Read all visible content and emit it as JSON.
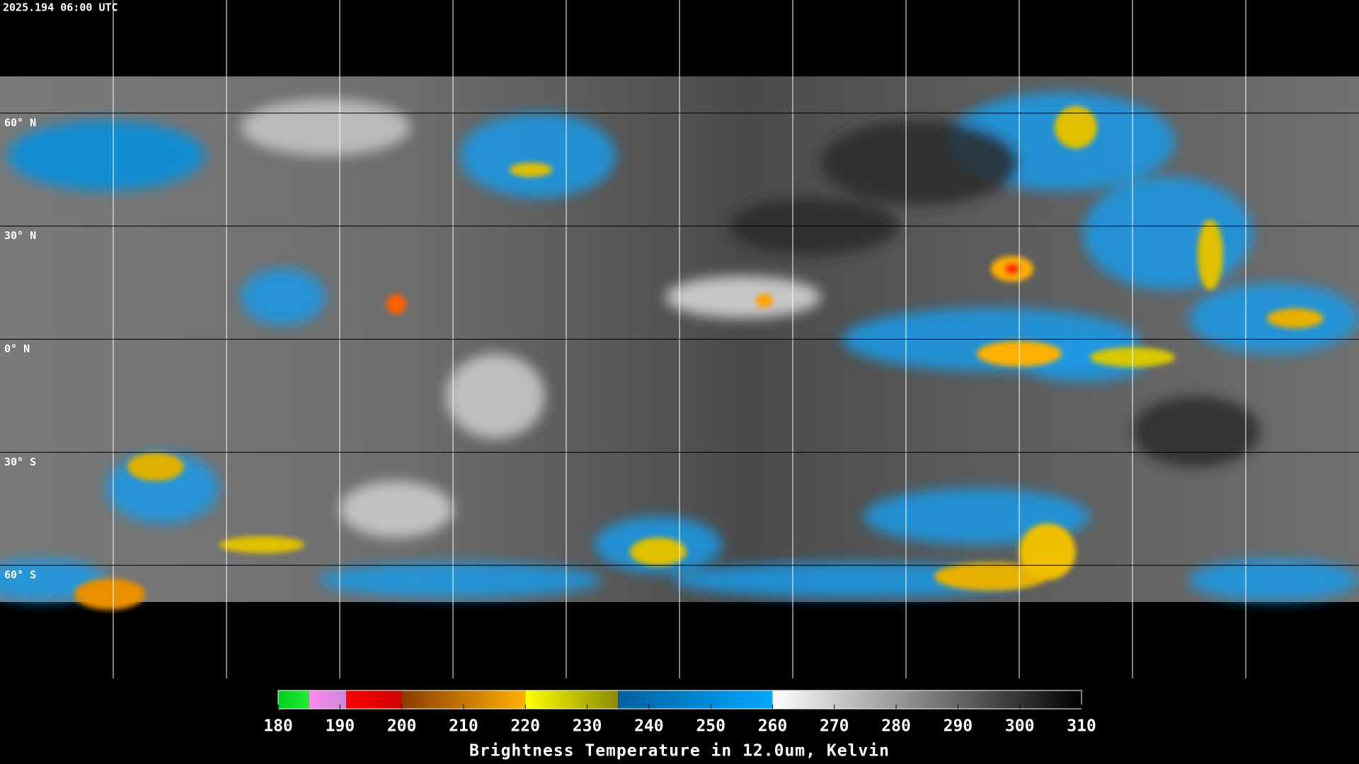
{
  "header": {
    "timestamp": "2025.194 06:00 UTC"
  },
  "map": {
    "lat_labels": [
      "60° N",
      "30° N",
      "0° N",
      "30° S",
      "60° S"
    ]
  },
  "colorbar": {
    "range": [
      180,
      310
    ],
    "ticks": [
      180,
      190,
      200,
      210,
      220,
      230,
      240,
      250,
      260,
      270,
      280,
      290,
      300,
      310
    ],
    "segments": [
      {
        "from": 180,
        "to": 185,
        "colors": [
          "#00cc22",
          "#22ee33"
        ]
      },
      {
        "from": 185,
        "to": 191,
        "colors": [
          "#ff88ee",
          "#cc88dd"
        ]
      },
      {
        "from": 191,
        "to": 200,
        "colors": [
          "#ff0000",
          "#cc0000"
        ]
      },
      {
        "from": 200,
        "to": 220,
        "colors": [
          "#8a3c00",
          "#ffb000"
        ]
      },
      {
        "from": 220,
        "to": 235,
        "colors": [
          "#ffff00",
          "#8a8a00"
        ]
      },
      {
        "from": 235,
        "to": 260,
        "colors": [
          "#0060a0",
          "#00a8ff"
        ]
      },
      {
        "from": 260,
        "to": 310,
        "colors": [
          "#ffffff",
          "#000000"
        ]
      }
    ],
    "label": "Brightness Temperature in 12.0um, Kelvin"
  }
}
